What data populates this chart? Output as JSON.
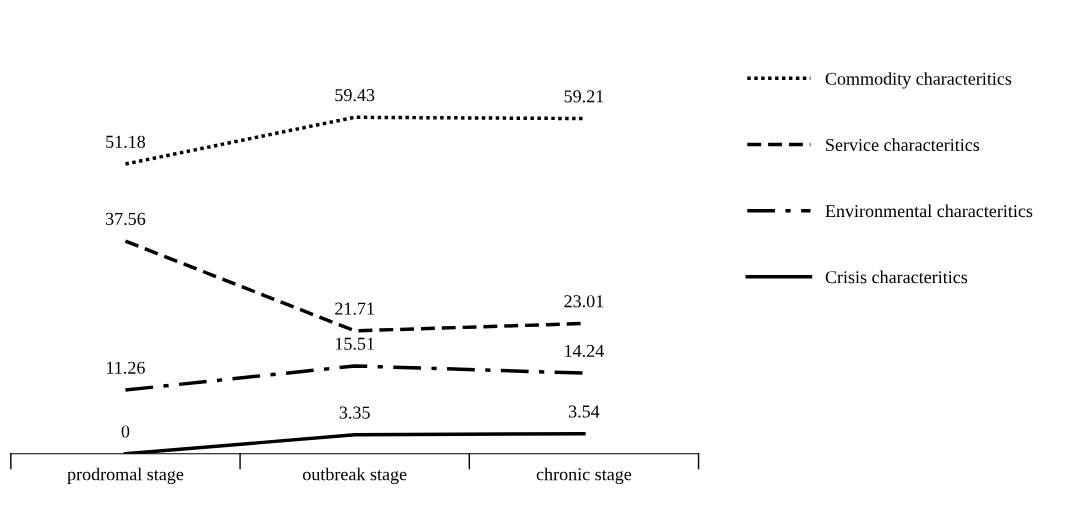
{
  "chart_data": {
    "type": "line",
    "categories": [
      "prodromal stage",
      "outbreak stage",
      "chronic stage"
    ],
    "series": [
      {
        "name": "Commodity characteritics",
        "color": "#000000",
        "line_style": "dotted",
        "values": [
          51.18,
          59.43,
          59.21
        ]
      },
      {
        "name": "Service characteritics",
        "color": "#000000",
        "line_style": "dashed",
        "values": [
          37.56,
          21.71,
          23.01
        ]
      },
      {
        "name": "Environmental characteritics",
        "color": "#000000",
        "line_style": "dashdot",
        "values": [
          11.26,
          15.51,
          14.24
        ]
      },
      {
        "name": "Crisis characteritics",
        "color": "#000000",
        "line_style": "solid",
        "values": [
          0,
          3.35,
          3.54
        ]
      }
    ],
    "data_labels": true,
    "legend": "right",
    "grid": false,
    "marker": "none"
  }
}
